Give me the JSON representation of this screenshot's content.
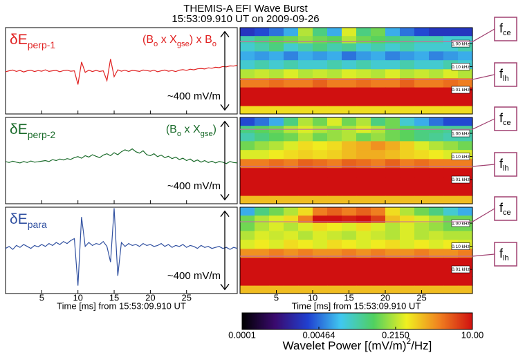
{
  "title": "THEMIS-A EFI Wave Burst",
  "subtitle": "15:53:09.910 UT on 2009-09-26",
  "colorbar": {
    "lim": [
      0.0001,
      10
    ],
    "log": true,
    "ticks": [
      0.0001,
      0.00464,
      {
        "value": 0.215,
        "label": "0.2150"
      },
      {
        "value": 10,
        "label": "10.00"
      }
    ],
    "colors": [
      "#000000",
      "#3a0a6e",
      "#2040d0",
      "#40c8f0",
      "#50d060",
      "#f0f020",
      "#f08020",
      "#d01010"
    ],
    "label": {
      "parts": [
        "Wavelet Power [(mV/m)",
        "2",
        "/Hz]"
      ]
    }
  },
  "chart_data": [
    {
      "type": "line",
      "label": {
        "text": "δE",
        "sub": "perp-1"
      },
      "annotation": {
        "parts": [
          "(B",
          "o",
          " x X",
          "gse",
          ") x B",
          "o"
        ]
      },
      "color": "#e02020",
      "scale_bar": {
        "value": 400,
        "label": "~400 mV/m"
      },
      "xlim": [
        0,
        32
      ],
      "ylim": [
        -220,
        220
      ],
      "xticks": [
        5,
        10,
        15,
        20,
        25
      ],
      "x": [
        0,
        0.5,
        1,
        1.5,
        2,
        2.5,
        3,
        3.5,
        4,
        4.5,
        5,
        5.5,
        6,
        6.5,
        7,
        7.5,
        8,
        8.5,
        9,
        9.5,
        10,
        10.5,
        11,
        11.5,
        12,
        12.5,
        13,
        13.5,
        14,
        14.5,
        15,
        15.5,
        16,
        16.5,
        17,
        17.5,
        18,
        18.5,
        19,
        19.5,
        20,
        20.5,
        21,
        21.5,
        22,
        22.5,
        23,
        23.5,
        24,
        24.5,
        25,
        25.5,
        26,
        26.5,
        27,
        27.5,
        28,
        28.5,
        29,
        29.5,
        30,
        30.5,
        31,
        31.5,
        32
      ],
      "values": [
        -5,
        0,
        4,
        -3,
        2,
        -6,
        0,
        3,
        -4,
        1,
        -2,
        5,
        -3,
        0,
        2,
        -5,
        1,
        3,
        -2,
        0,
        -70,
        45,
        -8,
        3,
        -4,
        2,
        -3,
        0,
        -50,
        60,
        -30,
        5,
        -2,
        3,
        -4,
        2,
        0,
        -3,
        4,
        1,
        -2,
        3,
        -5,
        0,
        4,
        -2,
        1,
        -4,
        3,
        6,
        2,
        8,
        5,
        10,
        12,
        9,
        15,
        13,
        18,
        16,
        22,
        20,
        25,
        24,
        28
      ]
    },
    {
      "type": "line",
      "label": {
        "text": "δE",
        "sub": "perp-2"
      },
      "annotation": {
        "parts": [
          "(B",
          "o",
          " x X",
          "gse",
          ")"
        ]
      },
      "color": "#1a6b2a",
      "scale_bar": {
        "value": 400,
        "label": "~400 mV/m"
      },
      "xlim": [
        0,
        32
      ],
      "ylim": [
        -220,
        220
      ],
      "xticks": [
        5,
        10,
        15,
        20,
        25
      ],
      "x": [
        0,
        0.5,
        1,
        1.5,
        2,
        2.5,
        3,
        3.5,
        4,
        4.5,
        5,
        5.5,
        6,
        6.5,
        7,
        7.5,
        8,
        8.5,
        9,
        9.5,
        10,
        10.5,
        11,
        11.5,
        12,
        12.5,
        13,
        13.5,
        14,
        14.5,
        15,
        15.5,
        16,
        16.5,
        17,
        17.5,
        18,
        18.5,
        19,
        19.5,
        20,
        20.5,
        21,
        21.5,
        22,
        22.5,
        23,
        23.5,
        24,
        24.5,
        25,
        25.5,
        26,
        26.5,
        27,
        27.5,
        28,
        28.5,
        29,
        29.5,
        30,
        30.5,
        31,
        31.5,
        32
      ],
      "values": [
        -5,
        -10,
        -3,
        -8,
        -12,
        -5,
        -10,
        -2,
        -8,
        -6,
        -3,
        0,
        -5,
        5,
        0,
        8,
        3,
        10,
        6,
        15,
        20,
        12,
        25,
        18,
        30,
        22,
        15,
        28,
        35,
        25,
        40,
        30,
        45,
        55,
        48,
        60,
        45,
        38,
        50,
        30,
        25,
        35,
        20,
        28,
        15,
        22,
        10,
        18,
        5,
        12,
        0,
        8,
        -5,
        3,
        -8,
        0,
        -10,
        -3,
        -12,
        -5,
        -8,
        -15,
        -5,
        -10,
        -12
      ]
    },
    {
      "type": "line",
      "label": {
        "text": "δE",
        "sub": "para"
      },
      "color": "#3050a0",
      "scale_bar": {
        "value": 400,
        "label": "~400 mV/m"
      },
      "xlim": [
        0,
        32
      ],
      "ylim": [
        -220,
        220
      ],
      "xticks": [
        5,
        10,
        15,
        20,
        25
      ],
      "xlabel": "Time [ms] from 15:53:09.910 UT",
      "x": [
        0,
        0.5,
        1,
        1.5,
        2,
        2.5,
        3,
        3.5,
        4,
        4.5,
        5,
        5.5,
        6,
        6.5,
        7,
        7.5,
        8,
        8.5,
        9,
        9.5,
        10,
        10.5,
        11,
        11.5,
        12,
        12.5,
        13,
        13.5,
        14,
        14.5,
        15,
        15.5,
        16,
        16.5,
        17,
        17.5,
        18,
        18.5,
        19,
        19.5,
        20,
        20.5,
        21,
        21.5,
        22,
        22.5,
        23,
        23.5,
        24,
        24.5,
        25,
        25.5,
        26,
        26.5,
        27,
        27.5,
        28,
        28.5,
        29,
        29.5,
        30,
        30.5,
        31,
        31.5,
        32
      ],
      "values": [
        10,
        20,
        5,
        25,
        15,
        30,
        20,
        10,
        25,
        18,
        30,
        20,
        35,
        25,
        40,
        30,
        45,
        35,
        50,
        60,
        -180,
        170,
        20,
        40,
        25,
        35,
        30,
        45,
        20,
        -60,
        215,
        -130,
        40,
        20,
        35,
        25,
        30,
        20,
        35,
        25,
        30,
        20,
        25,
        35,
        20,
        30,
        15,
        25,
        20,
        30,
        15,
        25,
        20,
        10,
        25,
        15,
        20,
        10,
        15,
        20,
        10,
        15,
        5,
        15,
        10
      ]
    },
    {
      "type": "heatmap",
      "log_y": true,
      "xlim": [
        0,
        32
      ],
      "ylim": [
        0.0009,
        4.9
      ],
      "xticks": [
        5,
        10,
        15,
        20,
        25
      ],
      "yticks": [
        {
          "value": 1,
          "label": "1.00 kHz"
        },
        {
          "value": 0.1,
          "label": "0.10 kHz"
        },
        {
          "value": 0.01,
          "label": "0.01 kHz"
        }
      ],
      "markers": [
        {
          "label": "f",
          "sub": "ce",
          "value": 1.2
        },
        {
          "label": "f",
          "sub": "lh",
          "value": 0.028
        }
      ],
      "x": [
        1,
        3,
        5,
        7,
        9,
        11,
        13,
        15,
        17,
        19,
        21,
        23,
        25,
        27,
        29,
        31
      ],
      "y": [
        3,
        1.5,
        0.7,
        0.3,
        0.12,
        0.05,
        0.02,
        0.008,
        0.003,
        0.0013
      ],
      "z": [
        [
          0.002,
          0.003,
          0.005,
          0.01,
          0.2,
          0.05,
          0.01,
          0.3,
          0.05,
          0.1,
          0.01,
          0.005,
          0.003,
          0.002,
          0.002,
          0.002
        ],
        [
          0.03,
          0.05,
          0.08,
          0.1,
          0.15,
          0.1,
          0.08,
          0.2,
          0.1,
          0.08,
          0.05,
          0.04,
          0.03,
          0.03,
          0.02,
          0.02
        ],
        [
          0.02,
          0.03,
          0.05,
          0.02,
          0.03,
          0.05,
          0.03,
          0.04,
          0.02,
          0.03,
          0.02,
          0.03,
          0.02,
          0.02,
          0.02,
          0.03
        ],
        [
          0.01,
          0.008,
          0.01,
          0.006,
          0.01,
          0.008,
          0.01,
          0.005,
          0.008,
          0.01,
          0.006,
          0.008,
          0.01,
          0.006,
          0.008,
          0.01
        ],
        [
          0.02,
          0.03,
          0.02,
          0.03,
          0.02,
          0.02,
          0.03,
          0.02,
          0.03,
          0.02,
          0.02,
          0.03,
          0.02,
          0.02,
          0.03,
          0.02
        ],
        [
          0.2,
          0.25,
          0.2,
          0.3,
          0.2,
          0.25,
          0.2,
          0.3,
          0.25,
          0.2,
          0.3,
          0.2,
          0.25,
          0.2,
          0.3,
          0.2
        ],
        [
          2,
          2,
          2.5,
          2,
          2,
          3,
          2,
          2,
          2.5,
          2,
          2,
          3,
          2,
          2,
          2.5,
          2
        ],
        [
          10,
          10,
          10,
          10,
          10,
          10,
          10,
          10,
          10,
          10,
          10,
          10,
          10,
          10,
          10,
          10
        ],
        [
          10,
          10,
          10,
          10,
          10,
          10,
          10,
          10,
          10,
          10,
          10,
          10,
          10,
          10,
          10,
          10
        ],
        [
          0.5,
          0.5,
          0.5,
          0.5,
          0.5,
          0.5,
          0.5,
          0.5,
          0.5,
          0.5,
          0.5,
          0.5,
          0.5,
          0.5,
          0.5,
          0.5
        ]
      ]
    },
    {
      "type": "heatmap",
      "log_y": true,
      "xlim": [
        0,
        32
      ],
      "ylim": [
        0.0009,
        4.9
      ],
      "xticks": [
        5,
        10,
        15,
        20,
        25
      ],
      "yticks": [
        {
          "value": 1,
          "label": "1.00 kHz"
        },
        {
          "value": 0.1,
          "label": "0.10 kHz"
        },
        {
          "value": 0.01,
          "label": "0.01 kHz"
        }
      ],
      "markers": [
        {
          "label": "f",
          "sub": "ce",
          "value": 1.5
        },
        {
          "label": "f",
          "sub": "lh",
          "value": 0.037
        }
      ],
      "x": [
        1,
        3,
        5,
        7,
        9,
        11,
        13,
        15,
        17,
        19,
        21,
        23,
        25,
        27,
        29,
        31
      ],
      "y": [
        3,
        1.5,
        0.7,
        0.3,
        0.12,
        0.05,
        0.02,
        0.008,
        0.003,
        0.0013
      ],
      "z": [
        [
          0.003,
          0.005,
          0.01,
          0.05,
          0.2,
          0.1,
          0.3,
          0.1,
          0.2,
          0.05,
          0.1,
          0.02,
          0.01,
          0.005,
          0.003,
          0.003
        ],
        [
          0.05,
          0.08,
          0.1,
          0.2,
          0.3,
          0.2,
          0.15,
          0.2,
          0.3,
          0.2,
          0.1,
          0.08,
          0.05,
          0.05,
          0.04,
          0.04
        ],
        [
          0.03,
          0.05,
          0.08,
          0.1,
          0.2,
          0.1,
          0.15,
          0.2,
          0.1,
          0.15,
          0.1,
          0.08,
          0.05,
          0.04,
          0.03,
          0.03
        ],
        [
          0.1,
          0.15,
          0.2,
          0.3,
          0.5,
          0.4,
          0.5,
          0.8,
          1,
          1.5,
          1,
          0.6,
          0.3,
          0.2,
          0.15,
          0.1
        ],
        [
          0.3,
          0.3,
          0.4,
          0.5,
          0.6,
          0.5,
          0.6,
          0.8,
          1,
          1,
          0.8,
          0.6,
          0.5,
          0.4,
          0.3,
          0.3
        ],
        [
          2,
          2,
          2.5,
          2,
          3,
          2.5,
          2,
          3,
          2.5,
          2,
          3,
          2,
          2.5,
          2,
          2,
          2
        ],
        [
          10,
          10,
          10,
          10,
          10,
          10,
          10,
          10,
          10,
          10,
          10,
          10,
          10,
          10,
          10,
          10
        ],
        [
          10,
          10,
          10,
          10,
          10,
          10,
          10,
          10,
          10,
          10,
          10,
          10,
          10,
          10,
          10,
          10
        ],
        [
          10,
          10,
          10,
          10,
          10,
          10,
          10,
          10,
          10,
          10,
          10,
          10,
          10,
          10,
          10,
          10
        ],
        [
          0.8,
          0.8,
          0.8,
          0.8,
          0.8,
          0.8,
          0.8,
          0.8,
          0.8,
          0.8,
          0.8,
          0.8,
          0.8,
          0.8,
          0.8,
          0.8
        ]
      ]
    },
    {
      "type": "heatmap",
      "log_y": true,
      "xlim": [
        0,
        32
      ],
      "ylim": [
        0.0009,
        4.9
      ],
      "xticks": [
        5,
        10,
        15,
        20,
        25
      ],
      "xlabel": "Time [ms] from 15:53:09.910 UT",
      "yticks": [
        {
          "value": 1,
          "label": "1.00 kHz"
        },
        {
          "value": 0.1,
          "label": "0.10 kHz"
        },
        {
          "value": 0.01,
          "label": "0.01 kHz"
        }
      ],
      "markers": [
        {
          "label": "f",
          "sub": "ce",
          "value": 1.15
        },
        {
          "label": "f",
          "sub": "lh",
          "value": 0.037
        }
      ],
      "x": [
        1,
        3,
        5,
        7,
        9,
        11,
        13,
        15,
        17,
        19,
        21,
        23,
        25,
        27,
        29,
        31
      ],
      "y": [
        3,
        1.5,
        0.7,
        0.3,
        0.12,
        0.05,
        0.02,
        0.008,
        0.003,
        0.0013
      ],
      "z": [
        [
          0.01,
          0.05,
          0.1,
          0.2,
          0.5,
          2,
          3,
          2,
          3,
          2,
          0.5,
          0.2,
          0.1,
          0.05,
          0.02,
          0.01
        ],
        [
          0.1,
          0.2,
          0.3,
          0.5,
          2,
          10,
          10,
          8,
          10,
          5,
          0.8,
          0.5,
          0.3,
          0.2,
          0.1,
          0.1
        ],
        [
          0.1,
          0.2,
          0.3,
          0.2,
          0.3,
          0.5,
          0.4,
          0.3,
          0.5,
          0.3,
          0.2,
          0.3,
          0.2,
          0.15,
          0.1,
          0.1
        ],
        [
          0.2,
          0.3,
          0.25,
          0.3,
          0.2,
          0.3,
          0.25,
          0.2,
          0.3,
          0.25,
          0.2,
          0.3,
          0.2,
          0.25,
          0.2,
          0.2
        ],
        [
          0.3,
          0.4,
          0.3,
          0.5,
          0.4,
          0.3,
          0.5,
          0.4,
          0.3,
          0.4,
          0.5,
          0.3,
          0.4,
          0.3,
          0.4,
          0.3
        ],
        [
          1.5,
          1.5,
          2,
          1.5,
          2,
          1.5,
          1.5,
          2,
          1.5,
          2,
          1.5,
          1.5,
          2,
          1.5,
          1.5,
          2
        ],
        [
          10,
          10,
          10,
          10,
          10,
          10,
          10,
          10,
          10,
          10,
          10,
          10,
          10,
          10,
          10,
          10
        ],
        [
          10,
          10,
          10,
          10,
          10,
          10,
          10,
          10,
          10,
          10,
          10,
          10,
          10,
          10,
          10,
          10
        ],
        [
          10,
          10,
          10,
          10,
          10,
          10,
          10,
          10,
          10,
          10,
          10,
          10,
          10,
          10,
          10,
          10
        ],
        [
          0.8,
          0.8,
          0.8,
          0.8,
          0.8,
          0.8,
          0.8,
          0.8,
          0.8,
          0.8,
          0.8,
          0.8,
          0.8,
          0.8,
          0.8,
          0.8
        ]
      ]
    }
  ]
}
